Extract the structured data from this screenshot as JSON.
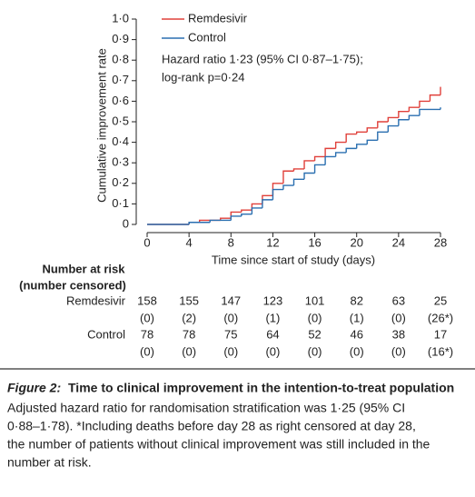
{
  "chart_data": {
    "type": "step",
    "y_label": "Cumulative improvement rate",
    "x_label": "Time since start of study (days)",
    "annotations": [
      "Hazard ratio 1·23 (95% CI 0·87–1·75);",
      "log-rank p=0·24"
    ],
    "xlim": [
      0,
      28
    ],
    "xticks": [
      0,
      4,
      8,
      12,
      16,
      20,
      24,
      28
    ],
    "ylim": [
      0,
      1.0
    ],
    "yticks": [
      0,
      {
        "value": 0.1,
        "label": "0·1"
      },
      {
        "value": 0.2,
        "label": "0·2"
      },
      {
        "value": 0.3,
        "label": "0·3"
      },
      {
        "value": 0.4,
        "label": "0·4"
      },
      {
        "value": 0.5,
        "label": "0·5"
      },
      {
        "value": 0.6,
        "label": "0·6"
      },
      {
        "value": 0.7,
        "label": "0·7"
      },
      {
        "value": 0.8,
        "label": "0·8"
      },
      {
        "value": 0.9,
        "label": "0·9"
      },
      {
        "value": 1.0,
        "label": "1·0"
      }
    ],
    "legend": "top-left",
    "series": [
      {
        "name": "Remdesivir",
        "color": "#e0403a",
        "x": [
          0,
          4,
          5,
          7,
          8,
          9,
          10,
          11,
          12,
          13,
          14,
          15,
          16,
          17,
          18,
          19,
          20,
          21,
          22,
          23,
          24,
          25,
          26,
          27,
          28
        ],
        "values": [
          0,
          0.01,
          0.02,
          0.03,
          0.06,
          0.07,
          0.1,
          0.14,
          0.2,
          0.26,
          0.27,
          0.31,
          0.33,
          0.37,
          0.4,
          0.44,
          0.45,
          0.47,
          0.5,
          0.52,
          0.55,
          0.57,
          0.6,
          0.63,
          0.67
        ]
      },
      {
        "name": "Control",
        "color": "#2a6fb0",
        "x": [
          0,
          4,
          6,
          8,
          9,
          10,
          11,
          12,
          13,
          14,
          15,
          16,
          17,
          18,
          19,
          20,
          21,
          22,
          23,
          24,
          25,
          26,
          28
        ],
        "values": [
          0,
          0.01,
          0.02,
          0.04,
          0.05,
          0.08,
          0.12,
          0.17,
          0.19,
          0.22,
          0.25,
          0.29,
          0.33,
          0.35,
          0.37,
          0.39,
          0.41,
          0.45,
          0.48,
          0.51,
          0.53,
          0.56,
          0.57
        ]
      }
    ],
    "risk_table": {
      "title": "Number at risk",
      "subtitle": "(number censored)",
      "rows": [
        {
          "name": "Remdesivir",
          "at_risk": [
            "158",
            "155",
            "147",
            "123",
            "101",
            "82",
            "63",
            "25"
          ],
          "censored": [
            "(0)",
            "(2)",
            "(0)",
            "(1)",
            "(0)",
            "(1)",
            "(0)",
            "(26*)"
          ]
        },
        {
          "name": "Control",
          "at_risk": [
            "78",
            "78",
            "75",
            "64",
            "52",
            "46",
            "38",
            "17"
          ],
          "censored": [
            "(0)",
            "(0)",
            "(0)",
            "(0)",
            "(0)",
            "(0)",
            "(0)",
            "(16*)"
          ]
        }
      ]
    }
  },
  "caption": {
    "label": "Figure 2:",
    "title": "Time to clinical improvement in the intention-to-treat population",
    "lines": [
      "Adjusted hazard ratio for randomisation stratification was 1·25 (95% CI",
      "0·88–1·78). *Including deaths before day 28 as right censored at day 28,",
      "the number of patients without clinical improvement was still included in the",
      "number at risk."
    ]
  }
}
